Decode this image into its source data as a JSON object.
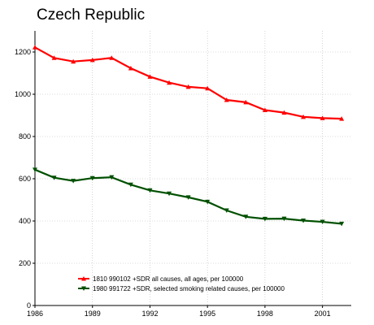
{
  "chart_data": {
    "type": "line",
    "title": "Czech Republic",
    "xlabel": "",
    "ylabel": "",
    "xlim": [
      1986,
      2002.5
    ],
    "ylim": [
      0,
      1300
    ],
    "x_ticks": [
      1986,
      1989,
      1992,
      1995,
      1998,
      2001
    ],
    "y_ticks": [
      0,
      200,
      400,
      600,
      800,
      1000,
      1200
    ],
    "grid": true,
    "legend_position": "bottom-center",
    "x": [
      1986,
      1987,
      1988,
      1989,
      1990,
      1991,
      1992,
      1993,
      1994,
      1995,
      1996,
      1997,
      1998,
      1999,
      2000,
      2001,
      2002
    ],
    "series": [
      {
        "name": "1810 990102 +SDR all causes, all ages, per 100000",
        "color": "#ff0000",
        "marker": "triangle",
        "values": [
          1222,
          1172,
          1155,
          1162,
          1172,
          1123,
          1083,
          1055,
          1035,
          1028,
          973,
          962,
          925,
          913,
          893,
          887,
          884
        ]
      },
      {
        "name": "1980 991722 +SDR, selected smoking related causes, per 100000",
        "color": "#005000",
        "marker": "triangle-down",
        "values": [
          643,
          605,
          590,
          603,
          607,
          572,
          545,
          530,
          512,
          491,
          450,
          420,
          410,
          411,
          402,
          396,
          387
        ]
      }
    ]
  }
}
